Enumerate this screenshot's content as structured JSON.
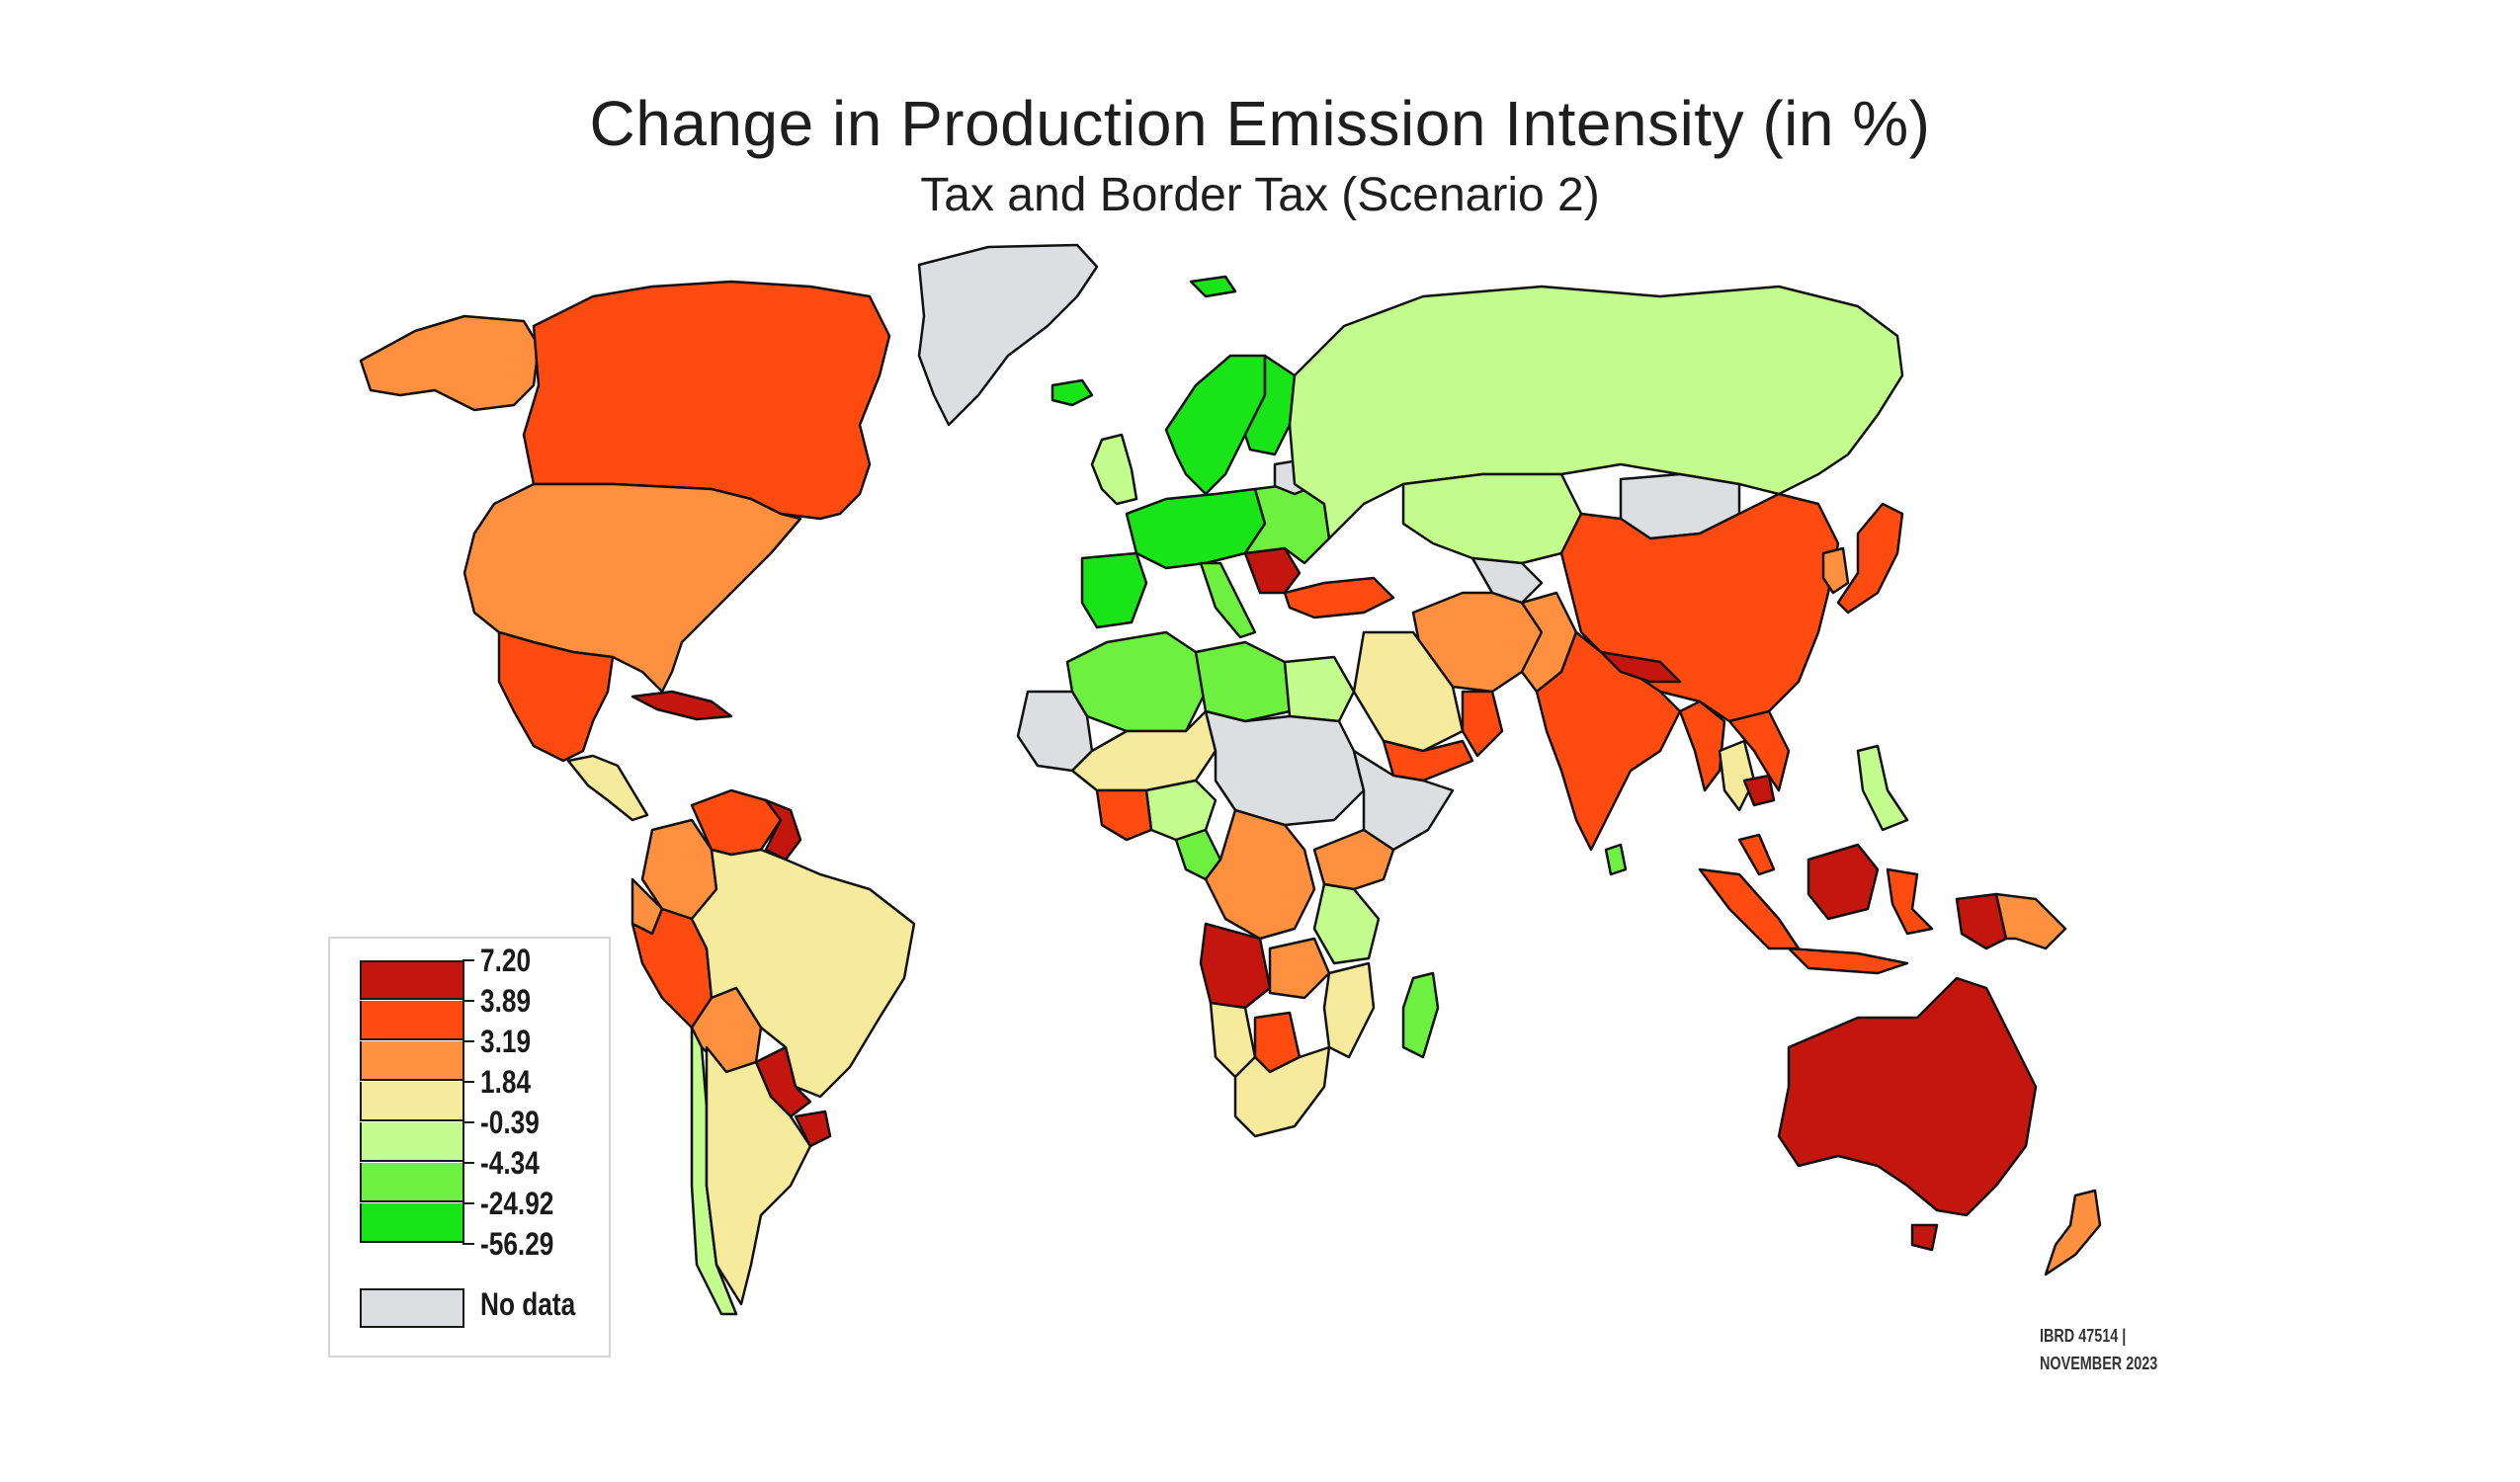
{
  "title": "Change in Production Emission Intensity (in %)",
  "subtitle": "Tax and Border Tax (Scenario 2)",
  "colors": {
    "c1": "#c2160e",
    "c2": "#ff4a10",
    "c3": "#ff9040",
    "c4": "#f6ea9c",
    "c5": "#c2fd8e",
    "c6": "#6ef040",
    "c7": "#18e418",
    "nodata": "#dcdee2",
    "border": "#111111",
    "water": "#9ad6f0"
  },
  "legend": {
    "breaks": [
      "7.20",
      "3.89",
      "3.19",
      "1.84",
      "-0.39",
      "-4.34",
      "-24.92",
      "-56.29"
    ],
    "classes": [
      {
        "id": "c1",
        "color": "#c2160e"
      },
      {
        "id": "c2",
        "color": "#ff4a10"
      },
      {
        "id": "c3",
        "color": "#ff9040"
      },
      {
        "id": "c4",
        "color": "#f6ea9c"
      },
      {
        "id": "c5",
        "color": "#c2fd8e"
      },
      {
        "id": "c6",
        "color": "#6ef040"
      },
      {
        "id": "c7",
        "color": "#18e418"
      }
    ],
    "nodata_label": "No data"
  },
  "credit": {
    "line1": "IBRD 47514 |",
    "line2": "NOVEMBER 2023"
  },
  "regions": [
    {
      "name": "greenland",
      "class": "nodata"
    },
    {
      "name": "canada",
      "class": "c2"
    },
    {
      "name": "alaska",
      "class": "c3"
    },
    {
      "name": "united-states",
      "class": "c3"
    },
    {
      "name": "mexico",
      "class": "c2"
    },
    {
      "name": "cuba",
      "class": "c1"
    },
    {
      "name": "central-america",
      "class": "c4"
    },
    {
      "name": "colombia",
      "class": "c3"
    },
    {
      "name": "venezuela",
      "class": "c2"
    },
    {
      "name": "guyana",
      "class": "c1"
    },
    {
      "name": "ecuador",
      "class": "c3"
    },
    {
      "name": "peru",
      "class": "c2"
    },
    {
      "name": "brazil",
      "class": "c4"
    },
    {
      "name": "bolivia",
      "class": "c3"
    },
    {
      "name": "paraguay",
      "class": "c1"
    },
    {
      "name": "uruguay",
      "class": "c1"
    },
    {
      "name": "chile",
      "class": "c5"
    },
    {
      "name": "argentina",
      "class": "c4"
    },
    {
      "name": "iceland",
      "class": "c7"
    },
    {
      "name": "svalbard",
      "class": "c7"
    },
    {
      "name": "ireland-uk",
      "class": "c5"
    },
    {
      "name": "norway-sweden",
      "class": "c7"
    },
    {
      "name": "finland",
      "class": "c7"
    },
    {
      "name": "western-europe",
      "class": "c7"
    },
    {
      "name": "iberia",
      "class": "c7"
    },
    {
      "name": "italy",
      "class": "c6"
    },
    {
      "name": "balkans",
      "class": "c1"
    },
    {
      "name": "eastern-europe",
      "class": "c6"
    },
    {
      "name": "belarus",
      "class": "nodata"
    },
    {
      "name": "turkey",
      "class": "c2"
    },
    {
      "name": "russia",
      "class": "c5"
    },
    {
      "name": "kazakhstan",
      "class": "c5"
    },
    {
      "name": "mongolia",
      "class": "nodata"
    },
    {
      "name": "china",
      "class": "c2"
    },
    {
      "name": "korea",
      "class": "c3"
    },
    {
      "name": "japan",
      "class": "c2"
    },
    {
      "name": "central-asia",
      "class": "nodata"
    },
    {
      "name": "iran-afghan",
      "class": "c3"
    },
    {
      "name": "pakistan",
      "class": "c3"
    },
    {
      "name": "saudi-arabia",
      "class": "c4"
    },
    {
      "name": "oman",
      "class": "c2"
    },
    {
      "name": "yemen",
      "class": "c2"
    },
    {
      "name": "india",
      "class": "c2"
    },
    {
      "name": "nepal",
      "class": "c1"
    },
    {
      "name": "myanmar",
      "class": "c2"
    },
    {
      "name": "thailand",
      "class": "c4"
    },
    {
      "name": "cambodia",
      "class": "c1"
    },
    {
      "name": "vietnam",
      "class": "c2"
    },
    {
      "name": "philippines",
      "class": "c5"
    },
    {
      "name": "malaysia",
      "class": "c2"
    },
    {
      "name": "sumatra",
      "class": "c2"
    },
    {
      "name": "java",
      "class": "c2"
    },
    {
      "name": "borneo",
      "class": "c1"
    },
    {
      "name": "sulawesi",
      "class": "c2"
    },
    {
      "name": "papua",
      "class": "c1"
    },
    {
      "name": "png",
      "class": "c3"
    },
    {
      "name": "australia",
      "class": "c1"
    },
    {
      "name": "tasmania",
      "class": "c1"
    },
    {
      "name": "new-zealand",
      "class": "c3"
    },
    {
      "name": "sri-lanka",
      "class": "c6"
    },
    {
      "name": "north-africa-west",
      "class": "c6"
    },
    {
      "name": "libya",
      "class": "c6"
    },
    {
      "name": "egypt",
      "class": "c5"
    },
    {
      "name": "west-africa",
      "class": "nodata"
    },
    {
      "name": "sahel",
      "class": "c4"
    },
    {
      "name": "sudan-chad",
      "class": "nodata"
    },
    {
      "name": "horn-of-africa",
      "class": "nodata"
    },
    {
      "name": "nigeria",
      "class": "c5"
    },
    {
      "name": "gulf-of-guinea",
      "class": "c2"
    },
    {
      "name": "cameroon-gabon",
      "class": "c6"
    },
    {
      "name": "congo",
      "class": "c3"
    },
    {
      "name": "east-africa",
      "class": "c3"
    },
    {
      "name": "tanzania",
      "class": "c5"
    },
    {
      "name": "angola",
      "class": "c1"
    },
    {
      "name": "zambia",
      "class": "c3"
    },
    {
      "name": "mozambique",
      "class": "c4"
    },
    {
      "name": "namibia",
      "class": "c4"
    },
    {
      "name": "botswana",
      "class": "c2"
    },
    {
      "name": "south-africa",
      "class": "c4"
    },
    {
      "name": "madagascar",
      "class": "c6"
    }
  ]
}
